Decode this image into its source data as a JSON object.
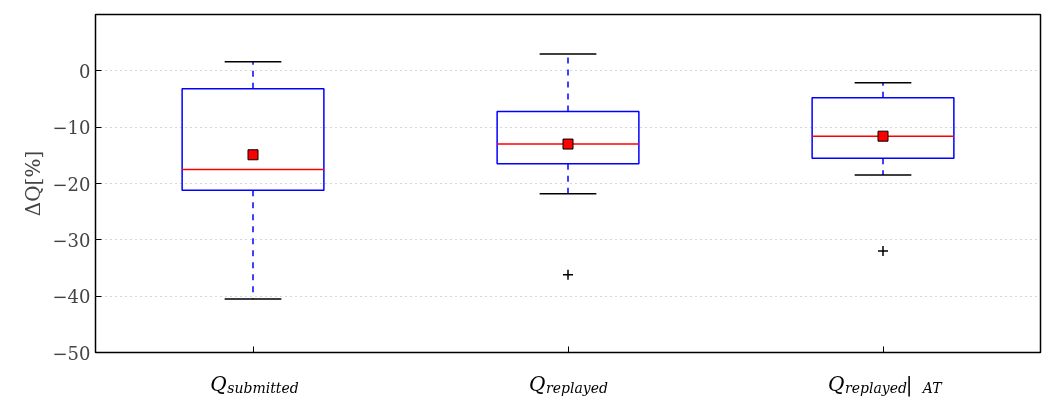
{
  "chart_data": {
    "type": "box",
    "ylabel": "ΔQ[%]",
    "categories": [
      "Q$_{submitted}$",
      "Q$_{replayed}$",
      "Q$_{replayed}$|$_{AT}$"
    ],
    "boxes": [
      {
        "low": -40.5,
        "q1": -21.2,
        "median": -17.5,
        "q3": -3.2,
        "high": 1.6,
        "mean": -14.9
      },
      {
        "low": -21.8,
        "q1": -16.5,
        "median": -13.0,
        "q3": -7.2,
        "high": 3.0,
        "mean": -13.0,
        "outliers": [
          -36.2
        ]
      },
      {
        "low": -18.5,
        "q1": -15.5,
        "median": -11.6,
        "q3": -4.8,
        "high": -2.1,
        "mean": -11.6,
        "outliers": [
          -32.0
        ]
      }
    ],
    "ylim": [
      -50,
      10
    ],
    "yticks": [
      {
        "value": -50,
        "label": "−50"
      },
      {
        "value": -40,
        "label": "−40"
      },
      {
        "value": -30,
        "label": "−30"
      },
      {
        "value": -20,
        "label": "−20"
      },
      {
        "value": -10,
        "label": "−10"
      },
      0
    ],
    "grid": "y"
  }
}
